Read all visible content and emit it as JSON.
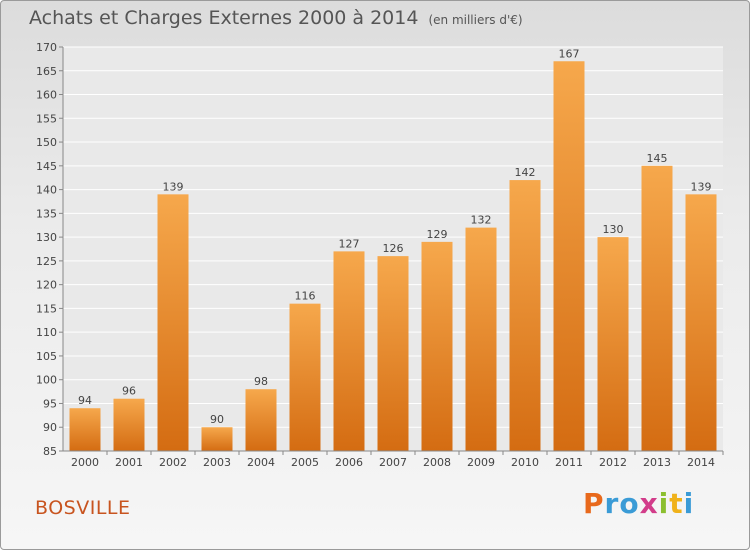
{
  "header": {
    "title": "Achats et Charges Externes 2000 à 2014",
    "unit": "(en milliers d'€)"
  },
  "footer": {
    "commune": "BOSVILLE",
    "logo": "Proxiti"
  },
  "colors": {
    "bar_light": "#f6a84c",
    "bar_dark": "#d46c12",
    "grid": "#ffffff",
    "text": "#444444",
    "commune": "#c8541f"
  },
  "chart_data": {
    "type": "bar",
    "title": "Achats et Charges Externes 2000 à 2014",
    "subtitle": "(en milliers d'€)",
    "categories": [
      "2000",
      "2001",
      "2002",
      "2003",
      "2004",
      "2005",
      "2006",
      "2007",
      "2008",
      "2009",
      "2010",
      "2011",
      "2012",
      "2013",
      "2014"
    ],
    "values": [
      94,
      96,
      139,
      90,
      98,
      116,
      127,
      126,
      129,
      132,
      142,
      167,
      130,
      145,
      139
    ],
    "ylim": [
      85,
      170
    ],
    "yticks": [
      85,
      90,
      95,
      100,
      105,
      110,
      115,
      120,
      125,
      130,
      135,
      140,
      145,
      150,
      155,
      160,
      165,
      170
    ],
    "xlabel": "",
    "ylabel": "",
    "grid": true,
    "data_labels": true
  }
}
